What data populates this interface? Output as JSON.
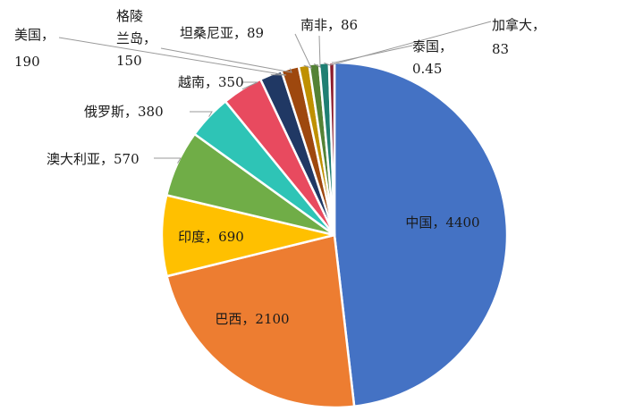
{
  "chart_data": {
    "type": "pie",
    "title": "",
    "slices": [
      {
        "label": "中国",
        "value": 4400,
        "text": "中国，4400",
        "color": "#4472C4"
      },
      {
        "label": "巴西",
        "value": 2100,
        "text": "巴西，2100",
        "color": "#ED7D31"
      },
      {
        "label": "印度",
        "value": 690,
        "text": "印度，690",
        "color": "#FFC000"
      },
      {
        "label": "澳大利亚",
        "value": 570,
        "text": "澳大利亚，570",
        "color": "#70AD47"
      },
      {
        "label": "俄罗斯",
        "value": 380,
        "text": "俄罗斯，380",
        "color": "#2EC4B6"
      },
      {
        "label": "越南",
        "value": 350,
        "text": "越南，350",
        "color": "#E84A5F"
      },
      {
        "label": "美国",
        "value": 190,
        "text": [
          "美国，",
          "190"
        ],
        "color": "#203864"
      },
      {
        "label": "格陵兰岛",
        "value": 150,
        "text": [
          "格陵",
          "兰岛，",
          "150"
        ],
        "color": "#9E480E"
      },
      {
        "label": "坦桑尼亚",
        "value": 89,
        "text": "坦桑尼亚，89",
        "color": "#BF9000"
      },
      {
        "label": "南非",
        "value": 86,
        "text": "南非，86",
        "color": "#548235"
      },
      {
        "label": "加拿大",
        "value": 83,
        "text": [
          "加拿大，",
          "83"
        ],
        "color": "#1F7F73"
      },
      {
        "label": "泰国",
        "value": 0.45,
        "text": [
          "泰国，",
          "0.45"
        ],
        "color": "#8B1A2B"
      }
    ]
  }
}
